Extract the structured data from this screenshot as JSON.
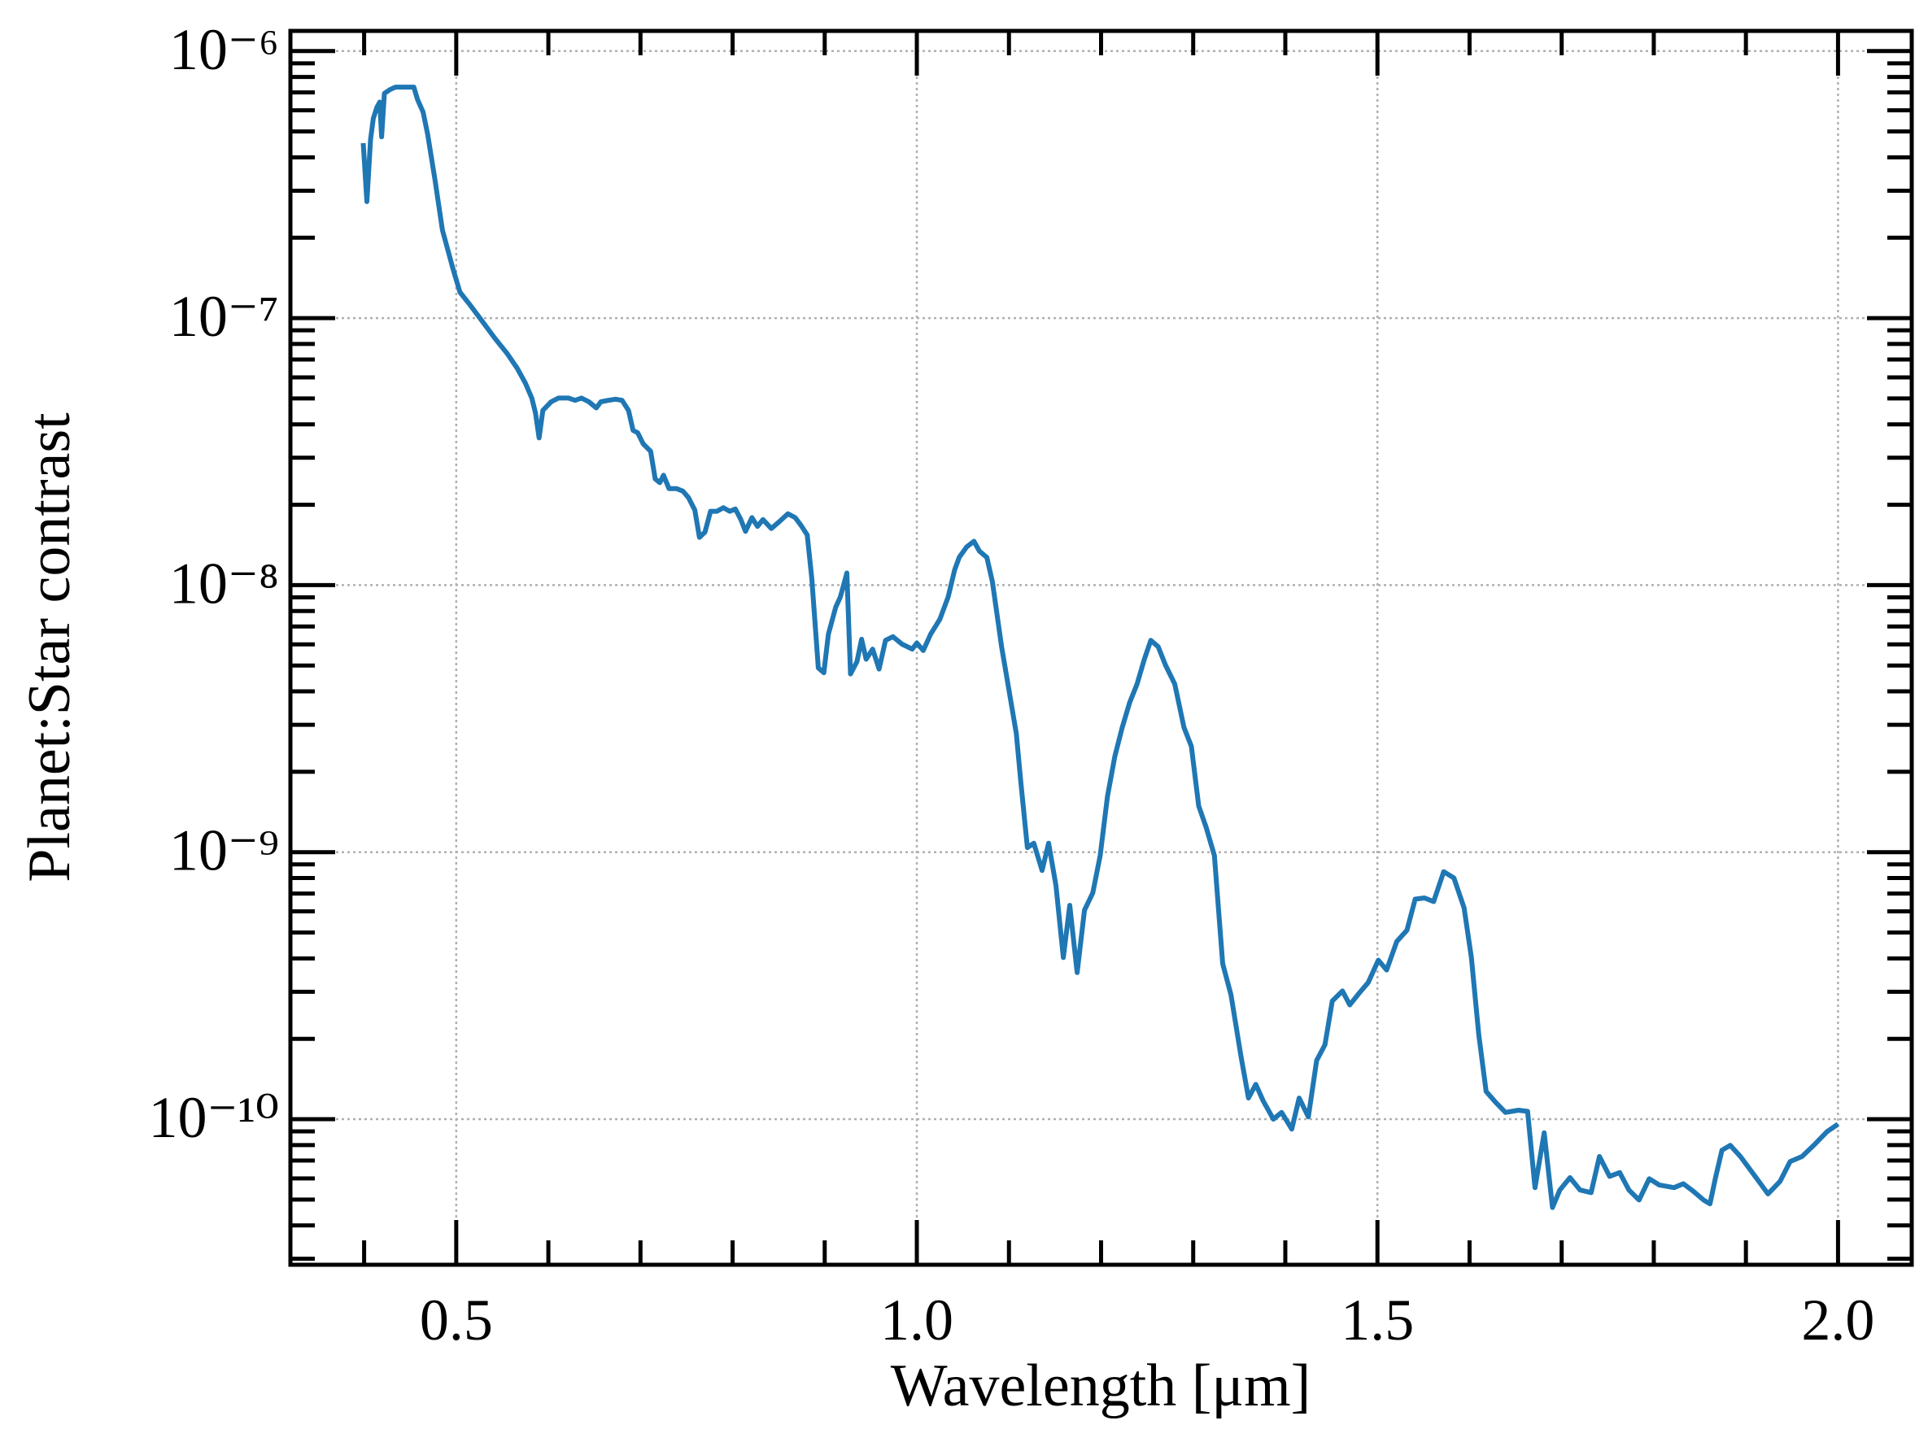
{
  "chart_data": {
    "type": "line",
    "xlabel": "Wavelength [μm]",
    "ylabel": "Planet:Star contrast",
    "color": "#1f77b4",
    "yscale": "log",
    "grid": true,
    "xlim": [
      0.32,
      2.08
    ],
    "ylim": [
      2.85e-11,
      1.19e-06
    ],
    "xticks": [
      0.5,
      {
        "value": 1.0,
        "label": "1.0"
      },
      1.5,
      {
        "value": 2.0,
        "label": "2.0"
      }
    ],
    "yticks": [
      {
        "value": 1e-10,
        "label": "10⁻¹⁰"
      },
      {
        "value": 1e-09,
        "label": "10⁻⁹"
      },
      {
        "value": 1e-08,
        "label": "10⁻⁸"
      },
      {
        "value": 1e-07,
        "label": "10⁻⁷"
      },
      {
        "value": 1e-06,
        "label": "10⁻⁶"
      }
    ],
    "x": [
      0.399,
      0.403,
      0.407,
      0.41,
      0.414,
      0.417,
      0.419,
      0.422,
      0.428,
      0.434,
      0.445,
      0.454,
      0.458,
      0.464,
      0.469,
      0.477,
      0.485,
      0.496,
      0.504,
      0.515,
      0.528,
      0.542,
      0.555,
      0.566,
      0.575,
      0.582,
      0.586,
      0.59,
      0.594,
      0.603,
      0.611,
      0.622,
      0.629,
      0.636,
      0.644,
      0.652,
      0.657,
      0.665,
      0.673,
      0.68,
      0.687,
      0.692,
      0.697,
      0.703,
      0.711,
      0.716,
      0.721,
      0.725,
      0.731,
      0.739,
      0.746,
      0.752,
      0.759,
      0.764,
      0.77,
      0.776,
      0.783,
      0.79,
      0.797,
      0.803,
      0.809,
      0.814,
      0.821,
      0.827,
      0.833,
      0.842,
      0.85,
      0.86,
      0.868,
      0.874,
      0.881,
      0.886,
      0.893,
      0.899,
      0.904,
      0.912,
      0.917,
      0.924,
      0.928,
      0.935,
      0.94,
      0.945,
      0.952,
      0.959,
      0.966,
      0.974,
      0.984,
      0.995,
      1.0,
      1.007,
      1.015,
      1.025,
      1.034,
      1.041,
      1.046,
      1.054,
      1.062,
      1.068,
      1.076,
      1.082,
      1.092,
      1.1,
      1.108,
      1.113,
      1.12,
      1.127,
      1.136,
      1.143,
      1.151,
      1.159,
      1.166,
      1.174,
      1.182,
      1.191,
      1.199,
      1.207,
      1.215,
      1.223,
      1.231,
      1.239,
      1.247,
      1.254,
      1.262,
      1.27,
      1.28,
      1.29,
      1.298,
      1.306,
      1.314,
      1.323,
      1.332,
      1.341,
      1.352,
      1.36,
      1.368,
      1.376,
      1.387,
      1.396,
      1.407,
      1.415,
      1.425,
      1.434,
      1.443,
      1.451,
      1.462,
      1.47,
      1.481,
      1.49,
      1.501,
      1.51,
      1.521,
      1.532,
      1.541,
      1.551,
      1.561,
      1.572,
      1.583,
      1.594,
      1.602,
      1.61,
      1.618,
      1.628,
      1.639,
      1.653,
      1.663,
      1.671,
      1.681,
      1.69,
      1.698,
      1.709,
      1.72,
      1.732,
      1.741,
      1.752,
      1.763,
      1.773,
      1.784,
      1.795,
      1.806,
      1.822,
      1.832,
      1.843,
      1.854,
      1.861,
      1.867,
      1.874,
      1.883,
      1.894,
      1.91,
      1.924,
      1.937,
      1.948,
      1.961,
      1.975,
      1.988,
      2.0
    ],
    "values": [
      4.52e-07,
      2.73e-07,
      4.67e-07,
      5.6e-07,
      6.17e-07,
      6.44e-07,
      4.77e-07,
      6.94e-07,
      7.17e-07,
      7.33e-07,
      7.33e-07,
      7.33e-07,
      6.58e-07,
      5.91e-07,
      4.88e-07,
      3.28e-07,
      2.14e-07,
      1.55e-07,
      1.25e-07,
      1.12e-07,
      9.76e-08,
      8.4e-08,
      7.39e-08,
      6.5e-08,
      5.71e-08,
      5.02e-08,
      4.42e-08,
      3.56e-08,
      4.51e-08,
      4.86e-08,
      5.02e-08,
      5.02e-08,
      4.92e-08,
      5.02e-08,
      4.86e-08,
      4.61e-08,
      4.86e-08,
      4.92e-08,
      4.97e-08,
      4.92e-08,
      4.51e-08,
      3.8e-08,
      3.72e-08,
      3.38e-08,
      3.17e-08,
      2.5e-08,
      2.42e-08,
      2.58e-08,
      2.3e-08,
      2.3e-08,
      2.25e-08,
      2.13e-08,
      1.91e-08,
      1.51e-08,
      1.58e-08,
      1.89e-08,
      1.89e-08,
      1.95e-08,
      1.89e-08,
      1.93e-08,
      1.76e-08,
      1.59e-08,
      1.79e-08,
      1.66e-08,
      1.76e-08,
      1.63e-08,
      1.72e-08,
      1.85e-08,
      1.79e-08,
      1.68e-08,
      1.54e-08,
      1.06e-08,
      4.9e-09,
      4.7e-09,
      6.55e-09,
      8.29e-09,
      9.03e-09,
      1.11e-08,
      4.65e-09,
      5.17e-09,
      6.27e-09,
      5.28e-09,
      5.76e-09,
      4.85e-09,
      6.21e-09,
      6.41e-09,
      6.01e-09,
      5.76e-09,
      6.07e-09,
      5.69e-09,
      6.55e-09,
      7.45e-09,
      9.03e-09,
      1.14e-08,
      1.27e-08,
      1.39e-08,
      1.46e-08,
      1.34e-08,
      1.27e-08,
      1.03e-08,
      5.88e-09,
      4.04e-09,
      2.78e-09,
      1.81e-09,
      1.04e-09,
      1.08e-09,
      8.54e-10,
      1.08e-09,
      7.51e-10,
      4.03e-10,
      6.32e-10,
      3.54e-10,
      6.06e-10,
      7.04e-10,
      9.71e-10,
      1.62e-09,
      2.29e-09,
      2.93e-09,
      3.63e-09,
      4.26e-09,
      5.28e-09,
      6.21e-09,
      5.88e-09,
      5.01e-09,
      4.26e-09,
      2.93e-09,
      2.49e-09,
      1.49e-09,
      1.24e-09,
      9.71e-10,
      3.82e-10,
      2.92e-10,
      1.71e-10,
      1.2e-10,
      1.35e-10,
      1.17e-10,
      1e-10,
      1.06e-10,
      9.18e-11,
      1.2e-10,
      1.02e-10,
      1.66e-10,
      1.9e-10,
      2.77e-10,
      3.02e-10,
      2.68e-10,
      2.99e-10,
      3.25e-10,
      3.94e-10,
      3.62e-10,
      4.63e-10,
      5.1e-10,
      6.67e-10,
      6.74e-10,
      6.53e-10,
      8.45e-10,
      8.01e-10,
      6.19e-10,
      4.03e-10,
      2.07e-10,
      1.27e-10,
      1.16e-10,
      1.06e-10,
      1.08e-10,
      1.07e-10,
      5.54e-11,
      8.89e-11,
      4.67e-11,
      5.43e-11,
      6.04e-11,
      5.43e-11,
      5.31e-11,
      7.25e-11,
      6.11e-11,
      6.31e-11,
      5.43e-11,
      4.98e-11,
      5.98e-11,
      5.67e-11,
      5.54e-11,
      5.73e-11,
      5.37e-11,
      4.98e-11,
      4.82e-11,
      6.04e-11,
      7.65e-11,
      7.98e-11,
      7.25e-11,
      6.11e-11,
      5.25e-11,
      5.85e-11,
      6.94e-11,
      7.25e-11,
      8.07e-11,
      8.98e-11,
      9.58e-11
    ]
  }
}
